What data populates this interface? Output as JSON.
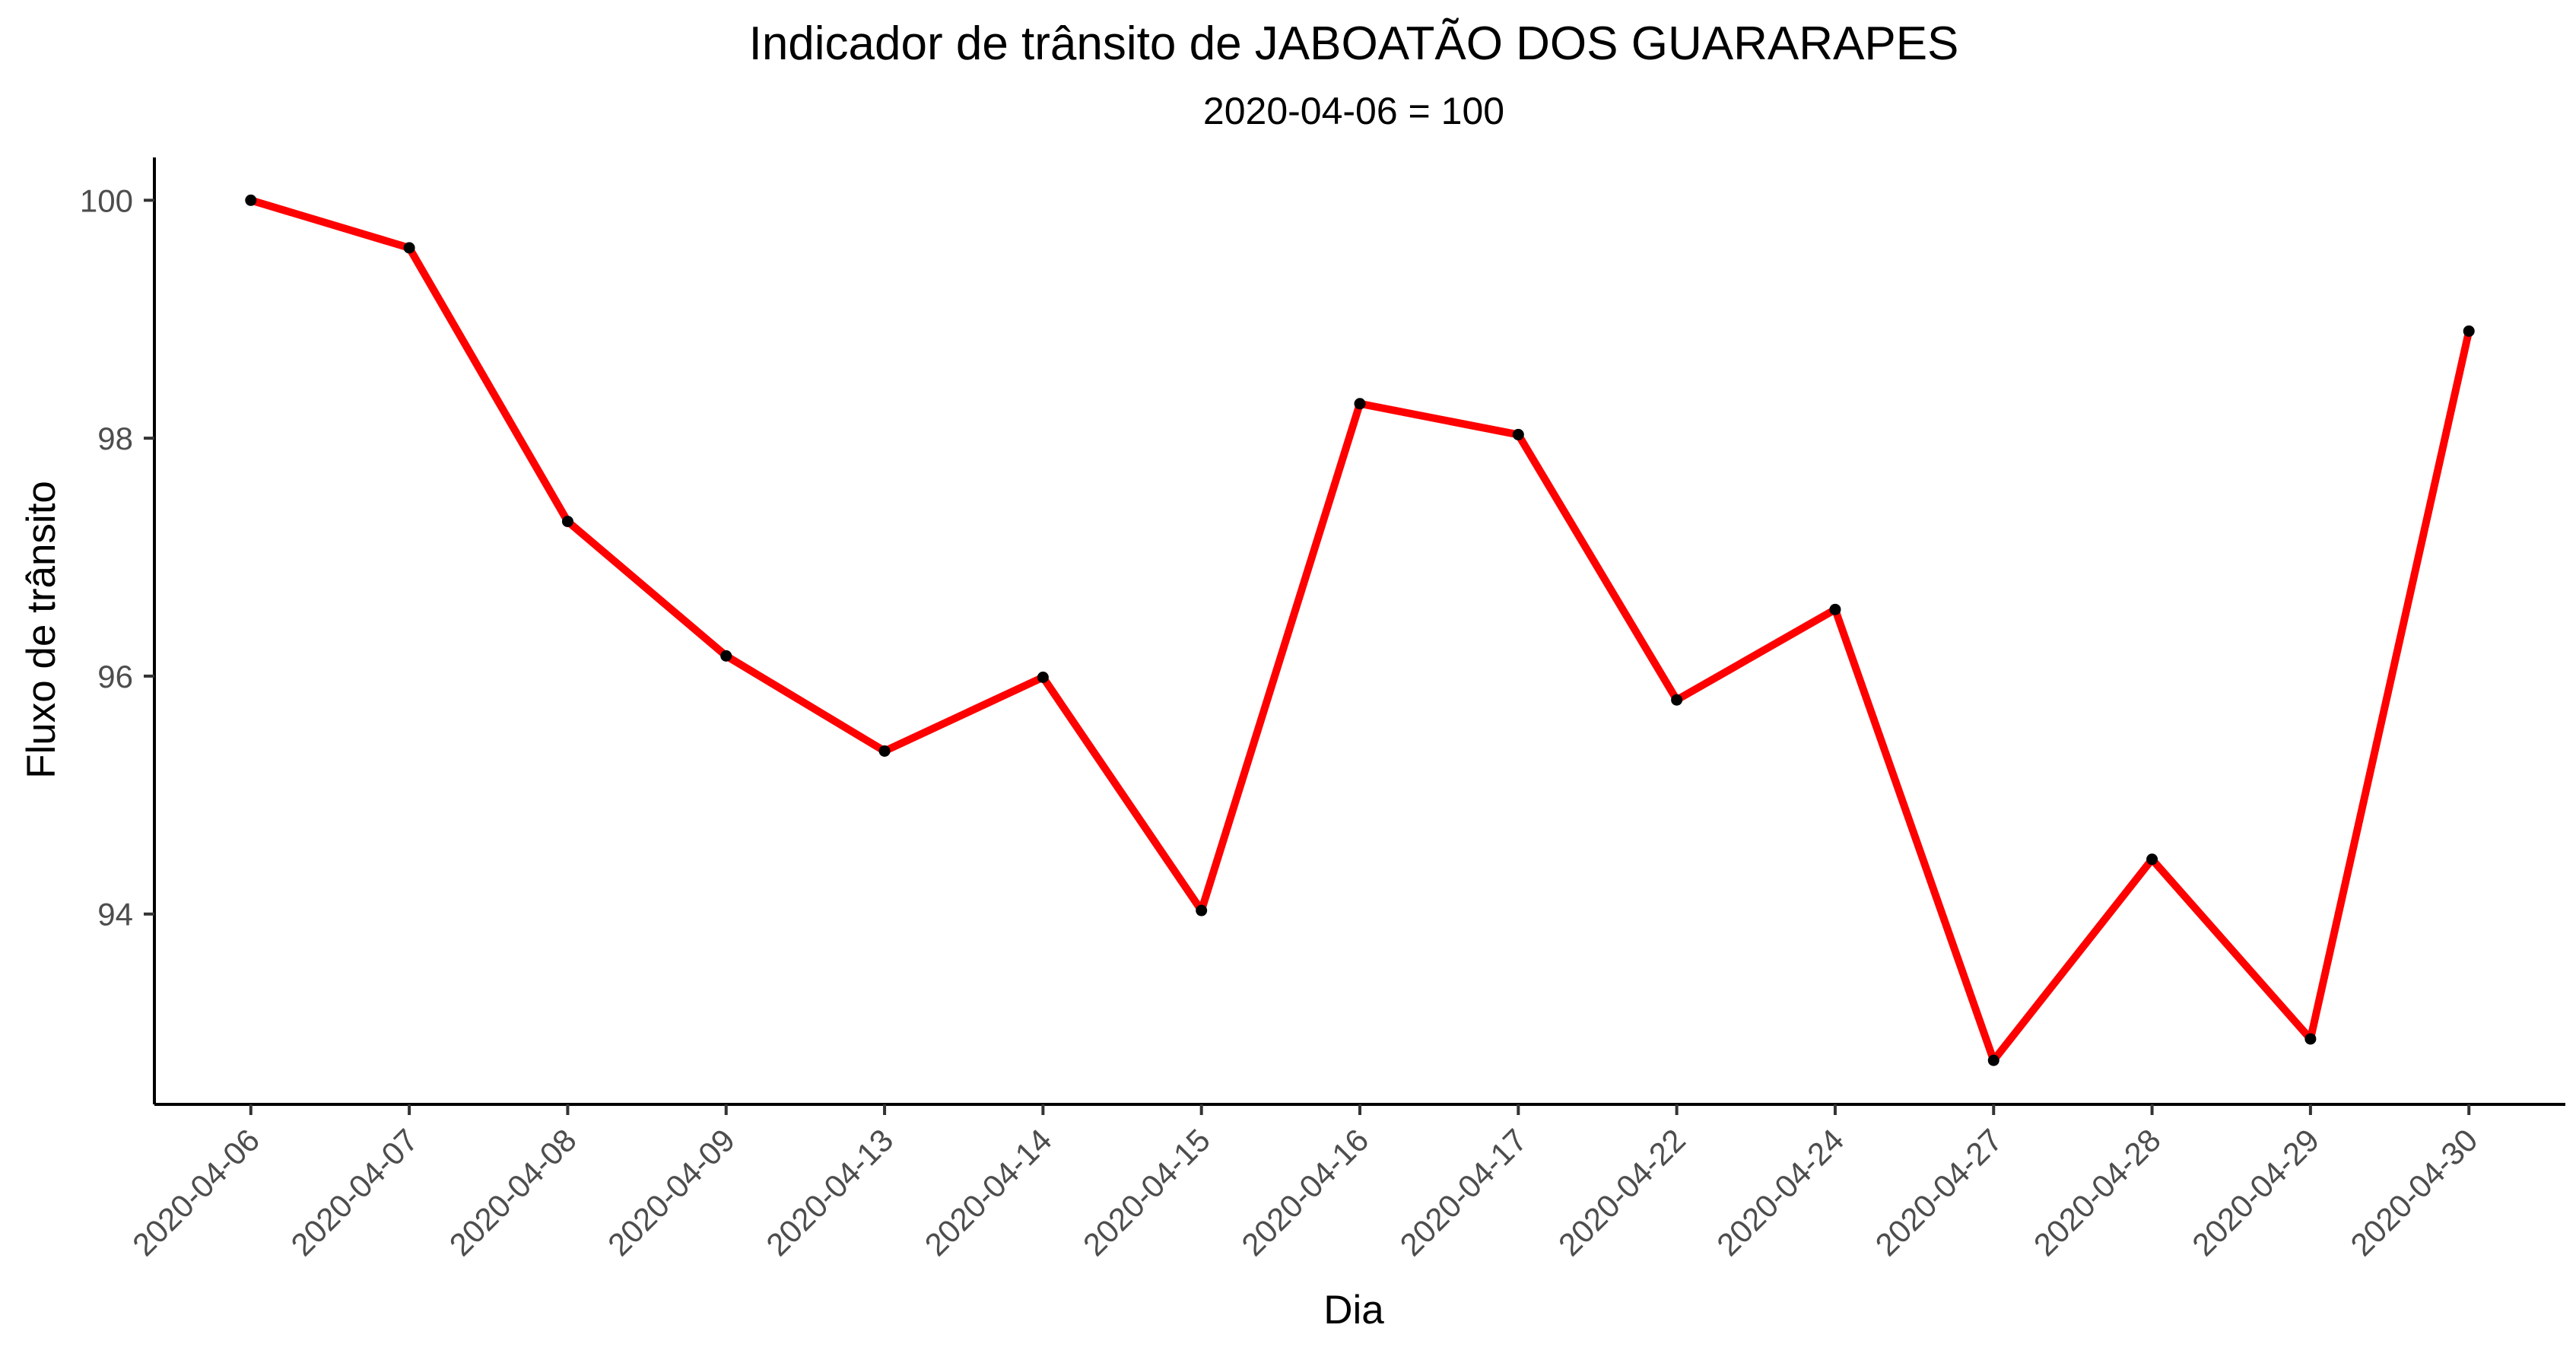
{
  "chart_data": {
    "type": "line",
    "title": "Indicador de trânsito de JABOATÃO DOS GUARARAPES",
    "subtitle": "2020-04-06 = 100",
    "xlabel": "Dia",
    "ylabel": "Fluxo de trânsito",
    "x": [
      "2020-04-06",
      "2020-04-07",
      "2020-04-08",
      "2020-04-09",
      "2020-04-13",
      "2020-04-14",
      "2020-04-15",
      "2020-04-16",
      "2020-04-17",
      "2020-04-22",
      "2020-04-24",
      "2020-04-27",
      "2020-04-28",
      "2020-04-29",
      "2020-04-30"
    ],
    "series": [
      {
        "values": [
          100.0,
          99.6,
          97.3,
          96.17,
          95.37,
          95.99,
          94.03,
          98.29,
          98.03,
          95.8,
          96.56,
          92.77,
          94.46,
          92.95,
          98.9
        ],
        "line_color": "#ff0000",
        "point_color": "#000000"
      }
    ],
    "y_ticks": [
      94,
      96,
      98,
      100
    ],
    "ylim": [
      92.4,
      100.36
    ],
    "x_axis": "categorical",
    "grid": false,
    "legend": "none"
  }
}
